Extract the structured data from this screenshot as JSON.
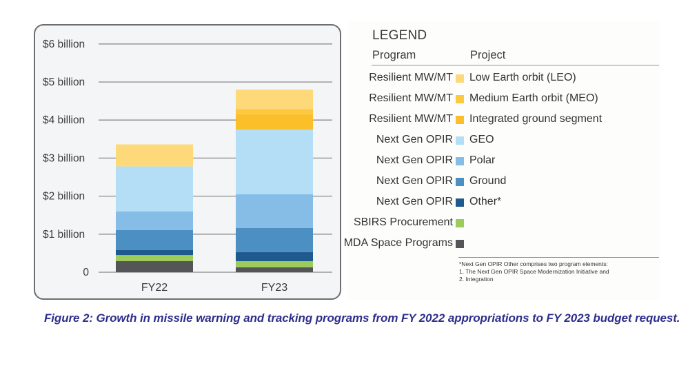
{
  "chart_data": {
    "type": "bar",
    "stacked": true,
    "title": "",
    "xlabel": "",
    "ylabel": "",
    "categories": [
      "FY22",
      "FY23"
    ],
    "y_ticks": [
      0,
      1,
      2,
      3,
      4,
      5,
      6
    ],
    "y_tick_labels": [
      "0",
      "$1 billion",
      "$2 billion",
      "$3 billion",
      "$4 billion",
      "$5 billion",
      "$6 billion"
    ],
    "ylim": [
      0,
      6
    ],
    "units": "$ billion",
    "grid": true,
    "legend_position": "right",
    "series": [
      {
        "program": "MDA Space Programs",
        "project": "",
        "name": "MDA Space Programs",
        "color": "#555558",
        "values": [
          0.29,
          0.13
        ]
      },
      {
        "program": "SBIRS Procurement",
        "project": "",
        "name": "SBIRS Procurement",
        "color": "#9ccd5a",
        "values": [
          0.16,
          0.16
        ]
      },
      {
        "program": "Next Gen OPIR",
        "project": "Other*",
        "name": "Next Gen OPIR Other*",
        "color": "#1f5a8f",
        "values": [
          0.13,
          0.24
        ]
      },
      {
        "program": "Next Gen OPIR",
        "project": "Ground",
        "name": "Next Gen OPIR Ground",
        "color": "#4b8fc3",
        "values": [
          0.53,
          0.63
        ]
      },
      {
        "program": "Next Gen OPIR",
        "project": "Polar",
        "name": "Next Gen OPIR Polar",
        "color": "#85bde6",
        "values": [
          0.49,
          0.89
        ]
      },
      {
        "program": "Next Gen OPIR",
        "project": "GEO",
        "name": "Next Gen OPIR GEO",
        "color": "#b3def5",
        "values": [
          1.18,
          1.7
        ]
      },
      {
        "program": "Resilient MW/MT",
        "project": "Integrated ground segment",
        "name": "Resilient MW/MT Integrated ground segment",
        "color": "#fbbf2a",
        "values": [
          0,
          0.4
        ]
      },
      {
        "program": "Resilient MW/MT",
        "project": "Medium Earth orbit (MEO)",
        "name": "Resilient MW/MT Medium Earth orbit (MEO)",
        "color": "#fdc940",
        "values": [
          0,
          0.14
        ]
      },
      {
        "program": "Resilient MW/MT",
        "project": "Low Earth orbit (LEO)",
        "name": "Resilient MW/MT Low Earth orbit (LEO)",
        "color": "#fdd97a",
        "values": [
          0.58,
          0.51
        ]
      }
    ]
  },
  "legend": {
    "title": "LEGEND",
    "program_header": "Program",
    "project_header": "Project",
    "rows": [
      {
        "program": "Resilient MW/MT",
        "project": "Low Earth orbit (LEO)",
        "color": "#fdd97a"
      },
      {
        "program": "Resilient MW/MT",
        "project": "Medium Earth orbit (MEO)",
        "color": "#fdc940"
      },
      {
        "program": "Resilient MW/MT",
        "project": "Integrated ground segment",
        "color": "#fbbf2a"
      },
      {
        "program": "Next Gen OPIR",
        "project": "GEO",
        "color": "#b3def5"
      },
      {
        "program": "Next Gen OPIR",
        "project": "Polar",
        "color": "#85bde6"
      },
      {
        "program": "Next Gen OPIR",
        "project": "Ground",
        "color": "#4b8fc3"
      },
      {
        "program": "Next Gen OPIR",
        "project": "Other*",
        "color": "#1f5a8f"
      },
      {
        "program": "SBIRS Procurement",
        "project": "",
        "color": "#9ccd5a"
      },
      {
        "program": "MDA Space Programs",
        "project": "",
        "color": "#555558"
      }
    ],
    "footnote": [
      "*Next Gen OPIR Other comprises two program elements:",
      " 1. The Next Gen OPIR Space Modernization Initiative and",
      " 2. Integration"
    ]
  },
  "caption": "Figure 2: Growth in missile warning and tracking programs from FY 2022 appropriations to FY 2023 budget request."
}
